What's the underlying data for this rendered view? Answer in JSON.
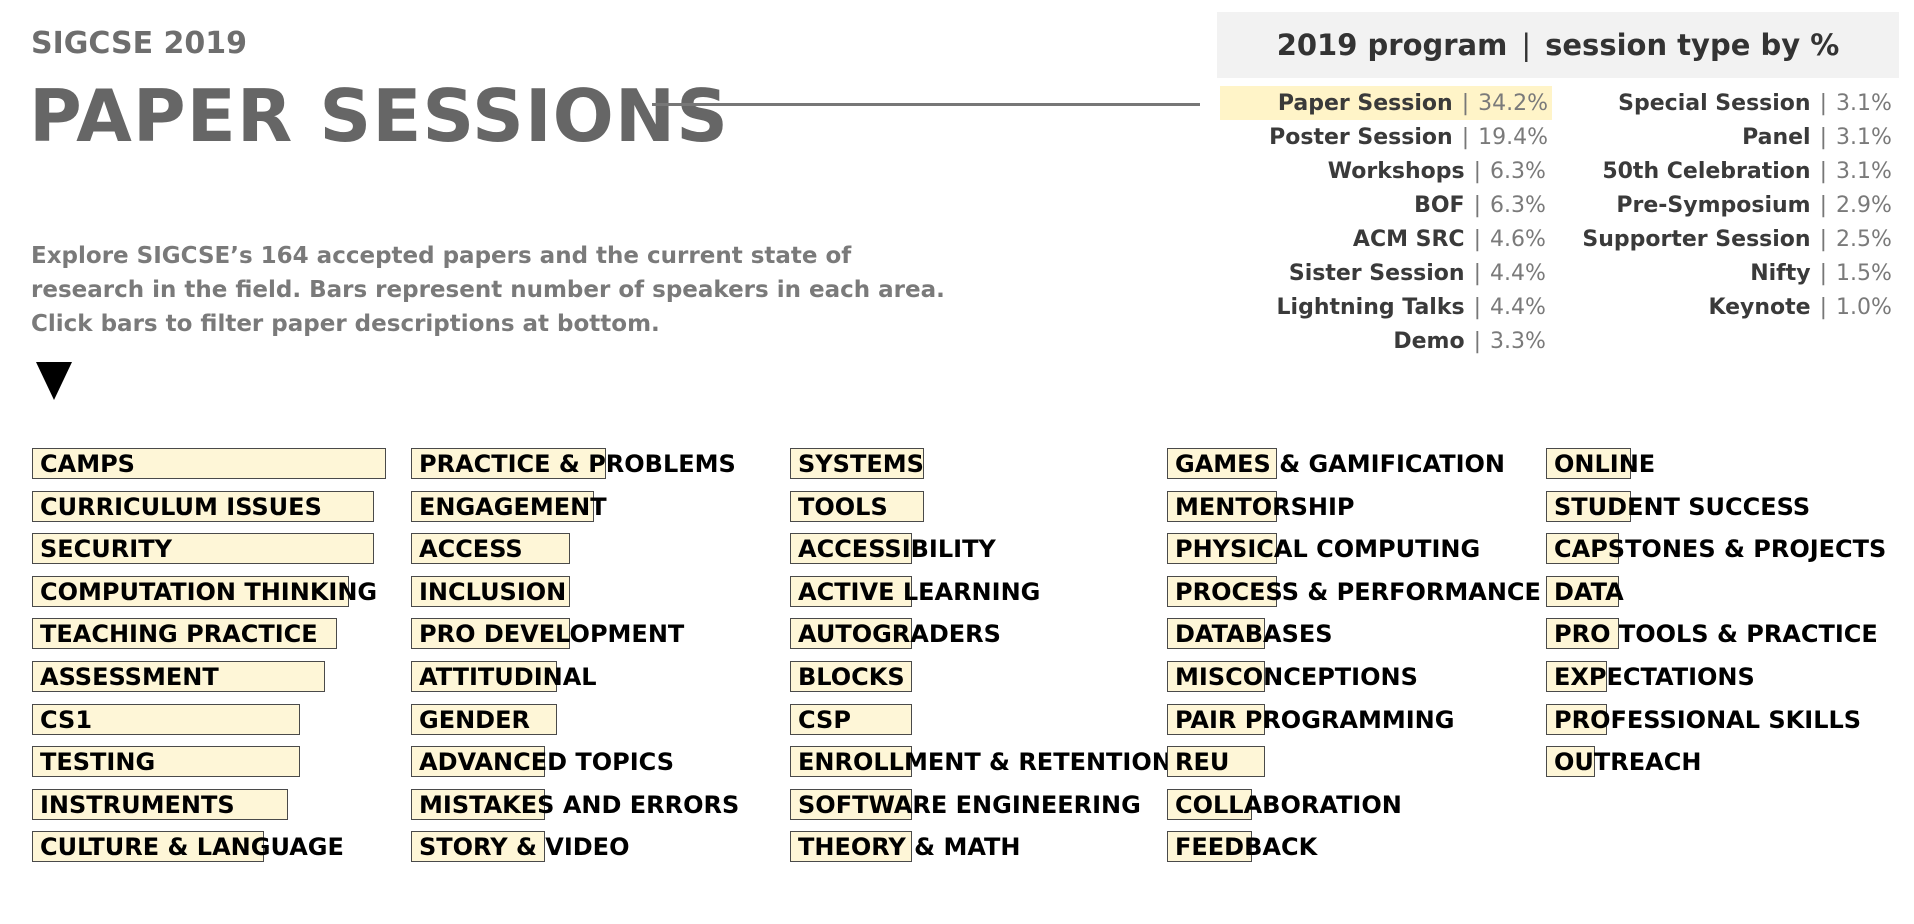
{
  "header": {
    "subtitle": "SIGCSE 2019",
    "title": "PAPER SESSIONS",
    "description": "Explore SIGCSE’s 164 accepted papers and the current state of research in the field. Bars represent number of speakers in each area. Click bars to filter paper descriptions at bottom."
  },
  "legend": {
    "title_left": "2019 program",
    "title_sep": "|",
    "title_right": "session type by %",
    "separator": "|",
    "col1": [
      {
        "name": "Paper Session",
        "pct": "34.2%",
        "highlight": true
      },
      {
        "name": "Poster Session",
        "pct": "19.4%"
      },
      {
        "name": "Workshops",
        "pct": "6.3%"
      },
      {
        "name": "BOF",
        "pct": "6.3%"
      },
      {
        "name": "ACM SRC",
        "pct": "4.6%"
      },
      {
        "name": "Sister Session",
        "pct": "4.4%"
      },
      {
        "name": "Lightning Talks",
        "pct": "4.4%"
      },
      {
        "name": "Demo",
        "pct": "3.3%"
      }
    ],
    "col2": [
      {
        "name": "Special Session",
        "pct": "3.1%"
      },
      {
        "name": "Panel",
        "pct": "3.1%"
      },
      {
        "name": "50th Celebration",
        "pct": "3.1%"
      },
      {
        "name": "Pre-Symposium",
        "pct": "2.9%"
      },
      {
        "name": "Supporter Session",
        "pct": "2.5%"
      },
      {
        "name": "Nifty",
        "pct": "1.5%"
      },
      {
        "name": "Keynote",
        "pct": "1.0%"
      }
    ]
  },
  "chart_data": {
    "type": "bar",
    "title": "PAPER SESSIONS",
    "xlabel": "",
    "ylabel": "",
    "value_unit": "relative speakers (approx. scale)",
    "columns": [
      {
        "categories": [
          "CAMPS",
          "CURRICULUM ISSUES",
          "SECURITY",
          "COMPUTATION THINKING",
          "TEACHING PRACTICE",
          "ASSESSMENT",
          "CS1",
          "TESTING",
          "INSTRUMENTS",
          "CULTURE & LANGUAGE"
        ],
        "values": [
          29,
          28,
          28,
          26,
          25,
          24,
          22,
          22,
          21,
          19
        ]
      },
      {
        "categories": [
          "PRACTICE & PROBLEMS",
          "ENGAGEMENT",
          "ACCESS",
          "INCLUSION",
          "PRO DEVELOPMENT",
          "ATTITUDINAL",
          "GENDER",
          "ADVANCED TOPICS",
          "MISTAKES AND ERRORS",
          "STORY & VIDEO"
        ],
        "values": [
          16,
          15,
          13,
          13,
          13,
          12,
          12,
          11,
          11,
          11
        ]
      },
      {
        "categories": [
          "SYSTEMS",
          "TOOLS",
          "ACCESSIBILITY",
          "ACTIVE LEARNING",
          "AUTOGRADERS",
          "BLOCKS",
          "CSP",
          "ENROLLMENT & RETENTION",
          "SOFTWARE ENGINEERING",
          "THEORY & MATH"
        ],
        "values": [
          11,
          11,
          10,
          10,
          10,
          10,
          10,
          10,
          10,
          10
        ]
      },
      {
        "categories": [
          "GAMES & GAMIFICATION",
          "MENTORSHIP",
          "PHYSICAL COMPUTING",
          "PROCESS & PERFORMANCE",
          "DATABASES",
          "MISCONCEPTIONS",
          "PAIR PROGRAMMING",
          "REU",
          "COLLABORATION",
          "FEEDBACK"
        ],
        "values": [
          9,
          9,
          9,
          9,
          8,
          8,
          8,
          8,
          7,
          7
        ]
      },
      {
        "categories": [
          "ONLINE",
          "STUDENT SUCCESS",
          "CAPSTONES & PROJECTS",
          "DATA",
          "PRO TOOLS & PRACTICE",
          "EXPECTATIONS",
          "PROFESSIONAL SKILLS",
          "OUTREACH"
        ],
        "values": [
          7,
          7,
          6,
          6,
          6,
          5,
          5,
          4
        ]
      }
    ],
    "bar_color": "#fef6d7",
    "border_color": "#4a4a4a"
  }
}
